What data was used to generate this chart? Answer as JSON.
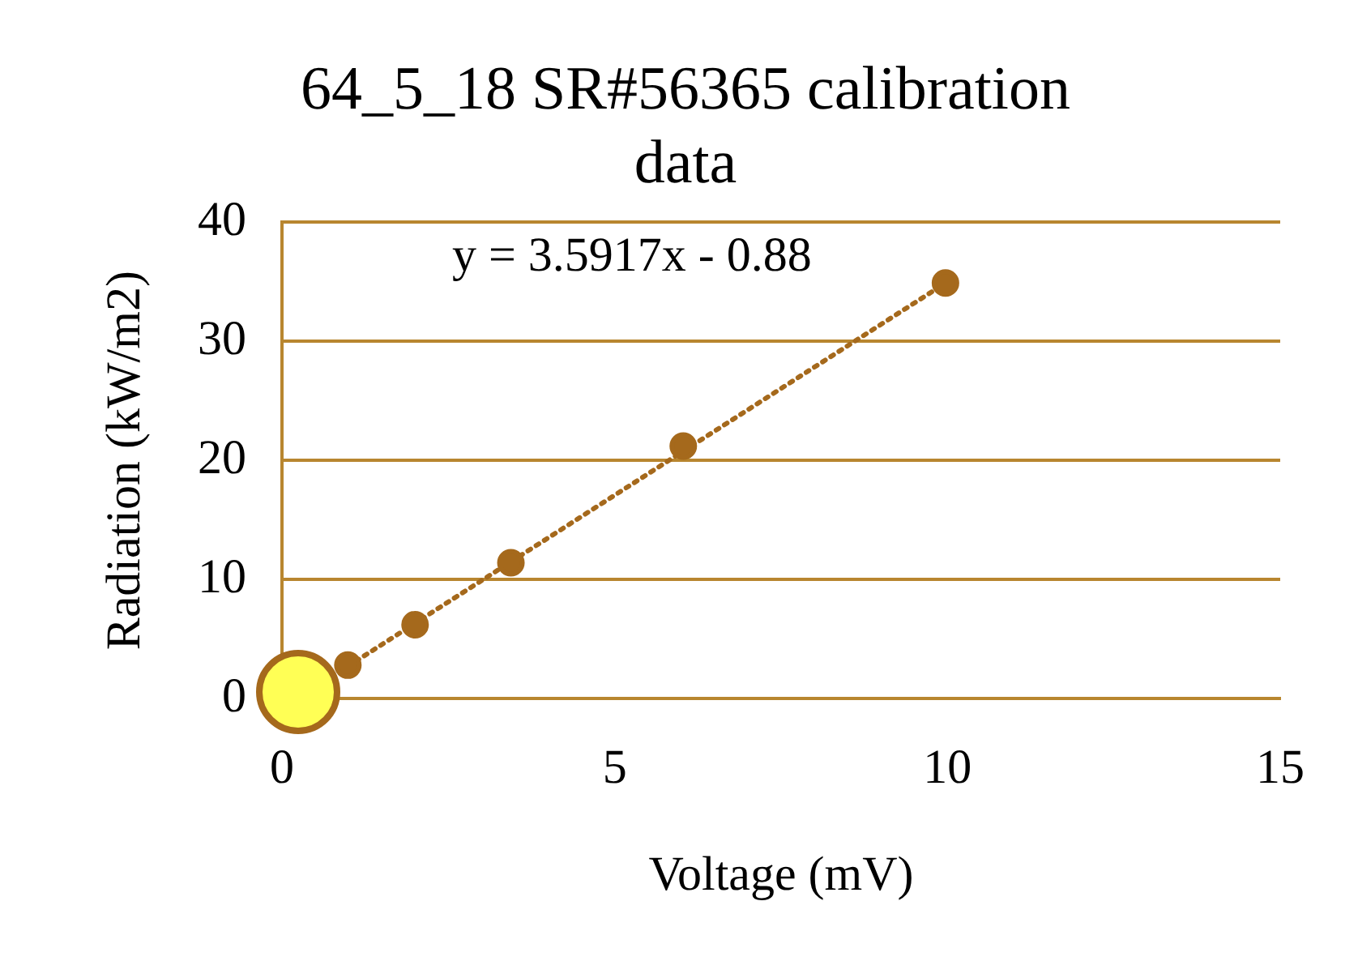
{
  "chart_data": {
    "type": "scatter",
    "title": "64_5_18 SR#56365 calibration data",
    "xlabel": "Voltage (mV)",
    "ylabel": "Radiation (kW/m2)",
    "annotations": [
      "y = 3.5917x - 0.88"
    ],
    "series": [
      {
        "type": "scatter",
        "color": "#a5691c",
        "x": [
          0.99,
          2.0,
          3.44,
          6.03,
          9.97
        ],
        "values": [
          2.8,
          6.2,
          11.4,
          21.2,
          34.9
        ],
        "marker": "circle"
      },
      {
        "type": "line",
        "color": "#a5691c",
        "x": [
          0.99,
          9.97
        ],
        "values": [
          2.7,
          34.9
        ],
        "line_style": "dotted",
        "marker": "none"
      }
    ],
    "xlim": [
      0,
      15
    ],
    "xticks": [
      0,
      5,
      10,
      15
    ],
    "ylim": [
      0,
      40
    ],
    "yticks": [
      0,
      10,
      20,
      30,
      40
    ],
    "grid": "y",
    "legend": false
  }
}
